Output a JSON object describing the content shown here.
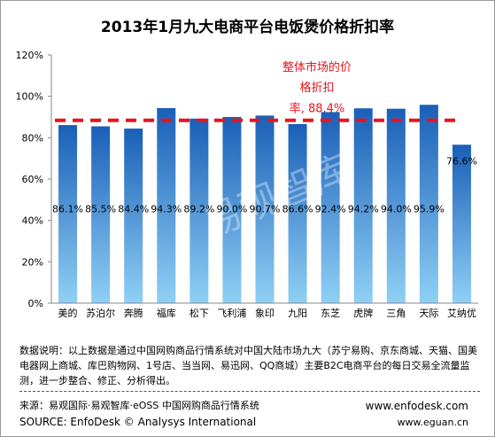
{
  "title": "2013年1月九大电商平台电饭煲价格折扣率",
  "chart_data": {
    "type": "bar",
    "categories": [
      "美的",
      "苏泊尔",
      "奔腾",
      "福库",
      "松下",
      "飞利浦",
      "象印",
      "九阳",
      "东芝",
      "虎牌",
      "三角",
      "天际",
      "艾纳优"
    ],
    "values": [
      86.1,
      85.5,
      84.4,
      94.3,
      89.2,
      90.0,
      90.7,
      86.6,
      92.4,
      94.2,
      94.0,
      95.9,
      76.6
    ],
    "value_labels": [
      "86.1%",
      "85.5%",
      "84.4%",
      "94.3%",
      "89.2%",
      "90.0%",
      "90.7%",
      "86.6%",
      "92.4%",
      "94.2%",
      "94.0%",
      "95.9%",
      "76.6%"
    ],
    "y_ticks": [
      "0%",
      "20%",
      "40%",
      "60%",
      "80%",
      "100%",
      "120%"
    ],
    "ylim": [
      0,
      120
    ],
    "reference_line": {
      "value": 88.4,
      "style": "dashed",
      "color": "#e8141c"
    },
    "annotation_lines": [
      "整体市场的价",
      "格折扣",
      "率, 88.4%"
    ],
    "grid": false,
    "colors": {
      "bar_top": "#1a5fb8",
      "bar_bottom": "#8fd0f5",
      "annotation": "#e8141c"
    }
  },
  "watermark": "易观智库",
  "note": "数据说明：以上数据是通过中国网购商品行情系统对中国大陆市场九大（苏宁易购、京东商城、天猫、国美电器网上商城、库巴购物网、1号店、当当网、易迅网、QQ商城）主要B2C电商平台的每日交易全流量监测，进一步整合、修正、分析得出。",
  "source_cn": "来源：易观国际·易观智库·eOSS 中国网购商品行情系统",
  "source_en": "SOURCE: EnfoDesk © Analysys International",
  "url_1": "www.enfodesk.com",
  "url_2": "www.eguan.cn"
}
